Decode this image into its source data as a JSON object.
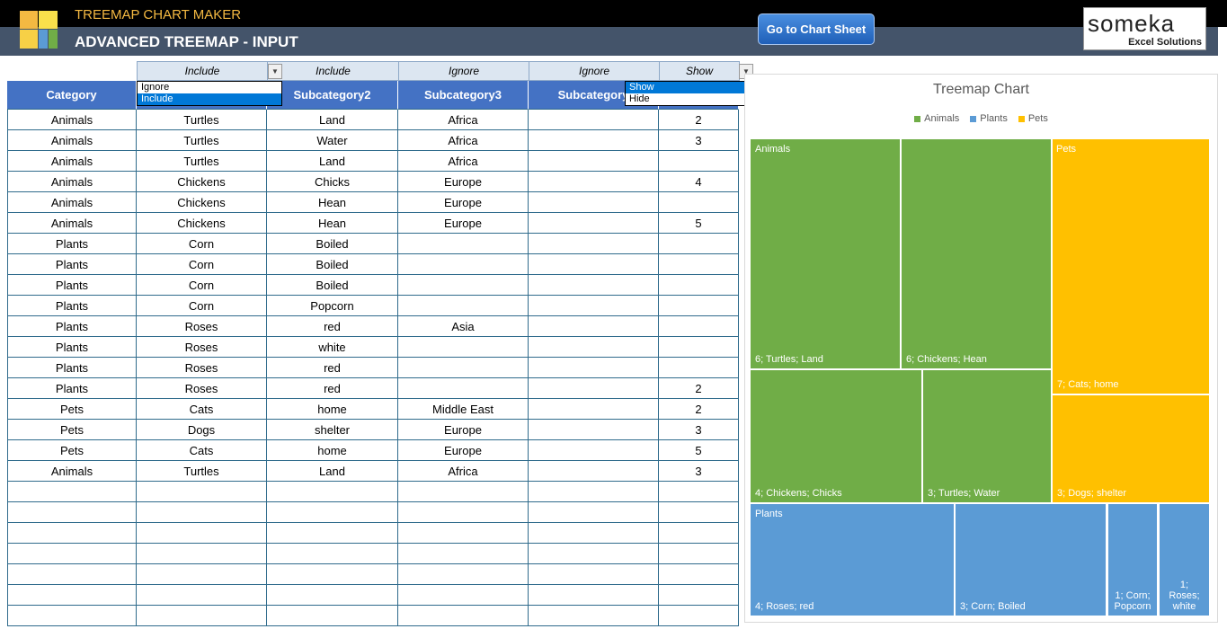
{
  "header": {
    "app_title": "TREEMAP CHART MAKER",
    "page_title": "ADVANCED TREEMAP - INPUT",
    "button": "Go to Chart Sheet",
    "brand": "someka",
    "brand_sub": "Excel Solutions"
  },
  "settings": [
    "Include",
    "Include",
    "Ignore",
    "Ignore",
    "Show"
  ],
  "dropdowns": [
    {
      "options": [
        "Ignore",
        "Include"
      ],
      "selected": 1
    },
    {
      "options": [
        "Show",
        "Hide"
      ],
      "selected": 0
    }
  ],
  "table": {
    "columns": [
      "Category",
      null,
      "Subcategory2",
      "Subcategory3",
      "Subcategory",
      null
    ],
    "rows": [
      [
        "Animals",
        "Turtles",
        "Land",
        "Africa",
        null,
        2
      ],
      [
        "Animals",
        "Turtles",
        "Water",
        "Africa",
        null,
        3
      ],
      [
        "Animals",
        "Turtles",
        "Land",
        "Africa",
        null,
        null
      ],
      [
        "Animals",
        "Chickens",
        "Chicks",
        "Europe",
        null,
        4
      ],
      [
        "Animals",
        "Chickens",
        "Hean",
        "Europe",
        null,
        null
      ],
      [
        "Animals",
        "Chickens",
        "Hean",
        "Europe",
        null,
        5
      ],
      [
        "Plants",
        "Corn",
        "Boiled",
        null,
        null,
        null
      ],
      [
        "Plants",
        "Corn",
        "Boiled",
        null,
        null,
        null
      ],
      [
        "Plants",
        "Corn",
        "Boiled",
        null,
        null,
        null
      ],
      [
        "Plants",
        "Corn",
        "Popcorn",
        null,
        null,
        null
      ],
      [
        "Plants",
        "Roses",
        "red",
        "Asia",
        null,
        null
      ],
      [
        "Plants",
        "Roses",
        "white",
        null,
        null,
        null
      ],
      [
        "Plants",
        "Roses",
        "red",
        null,
        null,
        null
      ],
      [
        "Plants",
        "Roses",
        "red",
        null,
        null,
        2
      ],
      [
        "Pets",
        "Cats",
        "home",
        "Middle East",
        null,
        2
      ],
      [
        "Pets",
        "Dogs",
        "shelter",
        "Europe",
        null,
        3
      ],
      [
        "Pets",
        "Cats",
        "home",
        "Europe",
        null,
        5
      ],
      [
        "Animals",
        "Turtles",
        "Land",
        "Africa",
        null,
        3
      ]
    ]
  },
  "treemap": {
    "title": "Treemap Chart",
    "groups": [
      {
        "name": "Animals",
        "color": "#70ad47",
        "tiles": [
          "6; Turtles; Land",
          "6; Chickens; Hean",
          "4; Chickens; Chicks",
          "3; Turtles; Water"
        ]
      },
      {
        "name": "Pets",
        "color": "#ffc000",
        "tiles": [
          "7; Cats; home",
          "3; Dogs; shelter"
        ]
      },
      {
        "name": "Plants",
        "color": "#5b9bd5",
        "tiles": [
          "4; Roses; red",
          "3; Corn; Boiled",
          "1; Corn; Popcorn",
          "1; Roses; white"
        ]
      }
    ]
  }
}
